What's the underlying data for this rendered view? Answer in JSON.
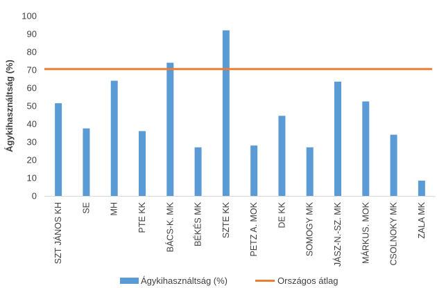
{
  "chart_data": {
    "type": "bar",
    "ylabel": "Ágykihasználtság (%)",
    "xlabel": "",
    "ylim": [
      0,
      100
    ],
    "yticks": [
      0,
      10,
      20,
      30,
      40,
      50,
      60,
      70,
      80,
      90,
      100
    ],
    "grid": false,
    "legend_position": "bottom",
    "categories": [
      "SZT JÁNOS KH",
      "SE",
      "MH",
      "PTE KK",
      "BÁCS-K. MK",
      "BÉKÉS MK",
      "SZTE KK",
      "PETZ A. MOK",
      "DE KK",
      "SOMOGY MK",
      "JÁSZ-N.-SZ. MK",
      "MÁRKUS. MOK",
      "CSOLNOKY MK",
      "ZALA MK"
    ],
    "series": [
      {
        "name": "Ágykihasználtság (%)",
        "type": "bar",
        "color": "#5B9BD5",
        "values": [
          51.5,
          37.5,
          64,
          36,
          74,
          27,
          92,
          28,
          44.5,
          27,
          63.5,
          52.5,
          34,
          8.5
        ]
      },
      {
        "name": "Országos átlag",
        "type": "line",
        "color": "#ED7D31",
        "value": 70.5
      }
    ]
  }
}
